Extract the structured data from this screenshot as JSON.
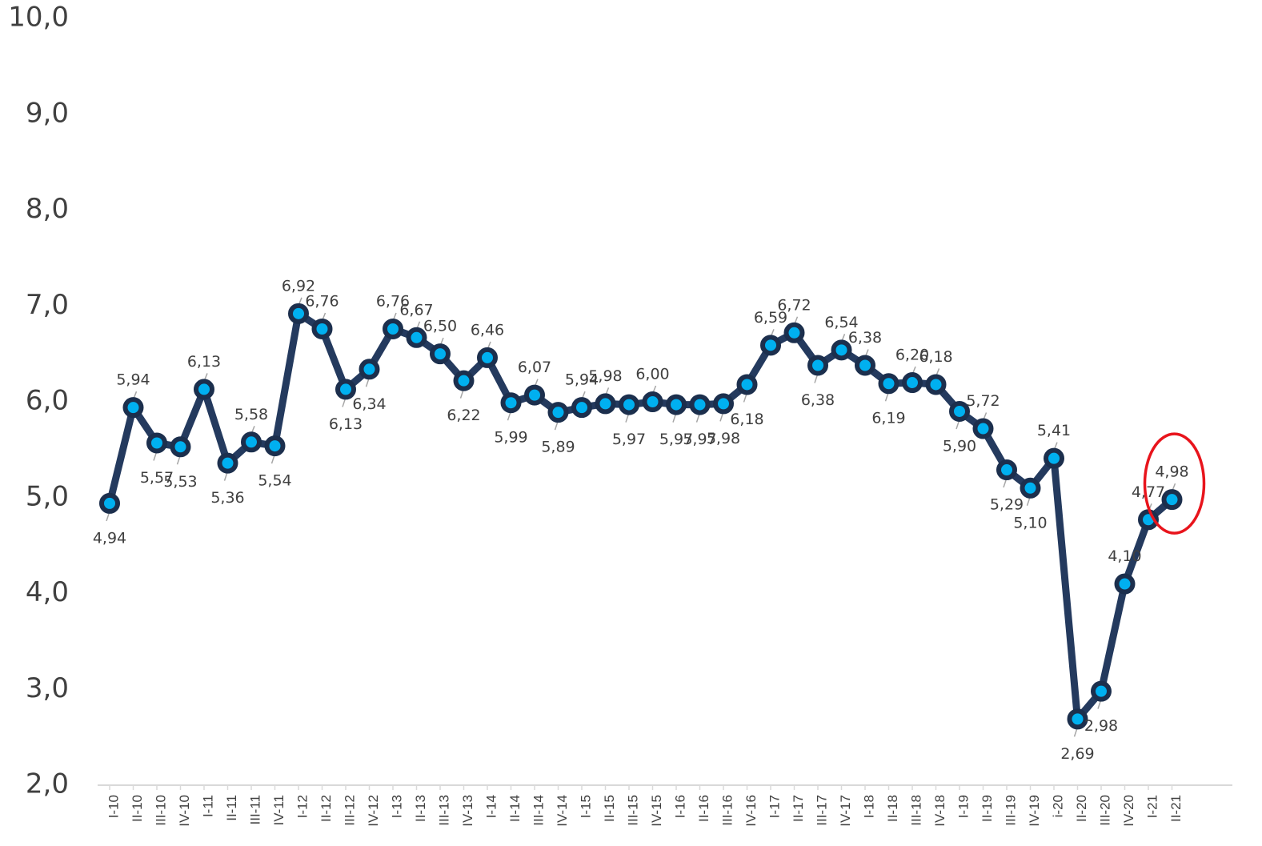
{
  "chart_data": {
    "type": "line",
    "title": "",
    "xlabel": "",
    "ylabel": "",
    "ylim": [
      2.0,
      10.0
    ],
    "yticks": [
      "2,0",
      "3,0",
      "4,0",
      "5,0",
      "6,0",
      "7,0",
      "8,0",
      "9,0",
      "10,0"
    ],
    "grid": false,
    "legend": "none",
    "categories": [
      "I-10",
      "II-10",
      "III-10",
      "IV-10",
      "I-11",
      "II-11",
      "III-11",
      "IV-11",
      "I-12",
      "II-12",
      "III-12",
      "IV-12",
      "I-13",
      "II-13",
      "III-13",
      "IV-13",
      "I-14",
      "II-14",
      "III-14",
      "IV-14",
      "I-15",
      "II-15",
      "III-15",
      "IV-15",
      "I-16",
      "II-16",
      "III-16",
      "IV-16",
      "I-17",
      "II-17",
      "III-17",
      "IV-17",
      "I-18",
      "II-18",
      "III-18",
      "IV-18",
      "I-19",
      "II-19",
      "III-19",
      "IV-19",
      "i-20",
      "II-20",
      "III-20",
      "IV-20",
      "I-21",
      "II-21"
    ],
    "values": [
      4.94,
      5.94,
      5.57,
      5.53,
      6.13,
      5.36,
      5.58,
      5.54,
      6.92,
      6.76,
      6.13,
      6.34,
      6.76,
      6.67,
      6.5,
      6.22,
      6.46,
      5.99,
      6.07,
      5.89,
      5.94,
      5.98,
      5.97,
      6.0,
      5.97,
      5.97,
      5.98,
      6.18,
      6.59,
      6.72,
      6.38,
      6.54,
      6.38,
      6.19,
      6.2,
      6.18,
      5.9,
      5.72,
      5.29,
      5.1,
      5.41,
      2.69,
      2.98,
      4.1,
      4.77,
      4.98
    ],
    "data_labels": [
      "4,94",
      "5,94",
      "5,57",
      "5,53",
      "6,13",
      "5,36",
      "5,58",
      "5,54",
      "6,92",
      "6,76",
      "6,13",
      "6,34",
      "6,76",
      "6,67",
      "6,50",
      "6,22",
      "6,46",
      "5,99",
      "6,07",
      "5,89",
      "5,94",
      "5,98",
      "5,97",
      "6,00",
      "5,97",
      "5,97",
      "5,98",
      "6,18",
      "6,59",
      "6,72",
      "6,38",
      "6,54",
      "6,38",
      "6,19",
      "6,20",
      "6,18",
      "5,90",
      "5,72",
      "5,29",
      "5,10",
      "5,41",
      "2,69",
      "2,98",
      "4,10",
      "4,77",
      "4,98"
    ],
    "highlight_index": 45,
    "colors": {
      "line": "#243a5e",
      "marker_fill": "#00b0f0",
      "marker_edge": "#1c2f4d",
      "highlight": "#e8141c",
      "text": "#404040",
      "axis": "#d9d9d9"
    }
  }
}
